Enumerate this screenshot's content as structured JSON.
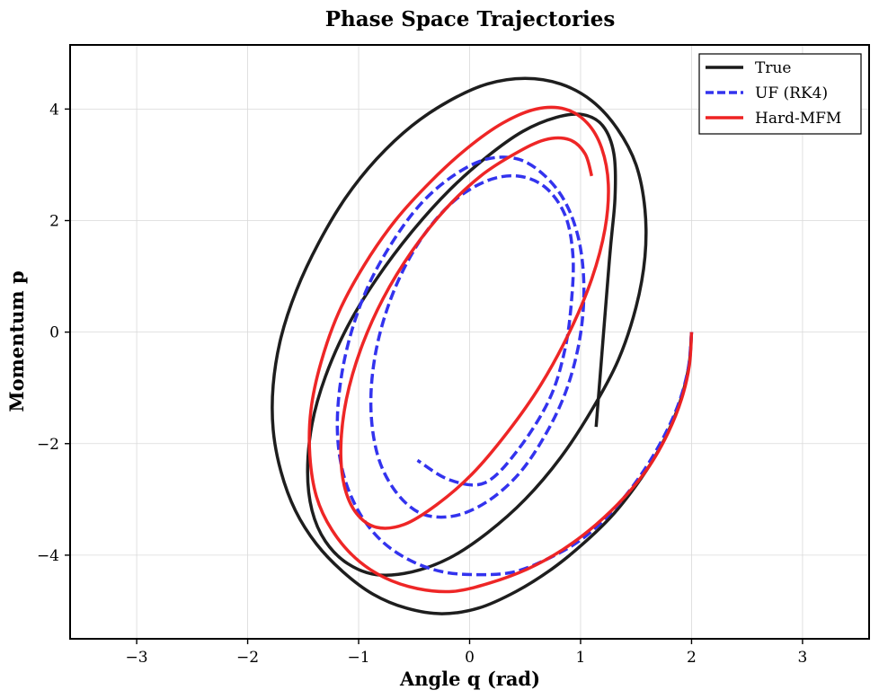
{
  "chart_data": {
    "type": "line",
    "title": "Phase Space Trajectories",
    "xlabel": "Angle q (rad)",
    "ylabel": "Momentum p",
    "xlim": [
      -3.6,
      3.6
    ],
    "ylim": [
      -5.5,
      5.15
    ],
    "xticks": [
      -3,
      -2,
      -1,
      0,
      1,
      2,
      3
    ],
    "yticks": [
      -4,
      -2,
      0,
      2,
      4
    ],
    "xtick_labels": [
      "−3",
      "−2",
      "−1",
      "0",
      "1",
      "2",
      "3"
    ],
    "ytick_labels": [
      "−4",
      "−2",
      "0",
      "2",
      "4"
    ],
    "grid": true,
    "legend_position": "top-right",
    "series": [
      {
        "name": "True",
        "color": "#1a1a1a",
        "style": "solid",
        "q": [
          2.0,
          1.98,
          1.92,
          1.82,
          1.68,
          1.5,
          1.28,
          1.02,
          0.74,
          0.42,
          0.08,
          -0.25,
          -0.57,
          -0.87,
          -1.14,
          -1.38,
          -1.57,
          -1.7,
          -1.77,
          -1.77,
          -1.7,
          -1.56,
          -1.36,
          -1.12,
          -0.84,
          -0.52,
          -0.18,
          0.16,
          0.5,
          0.82,
          1.1,
          1.33,
          1.5,
          1.58,
          1.58,
          1.5,
          1.34,
          1.1,
          0.82,
          0.5,
          0.16,
          -0.18,
          -0.52,
          -0.84,
          -1.1,
          -1.3,
          -1.42,
          -1.46,
          -1.42,
          -1.3,
          -1.1,
          -0.84,
          -0.52,
          -0.18,
          0.16,
          0.48,
          0.78,
          1.02,
          1.2,
          1.3,
          1.31,
          1.26,
          1.14
        ],
        "p": [
          0.0,
          -0.55,
          -1.1,
          -1.65,
          -2.2,
          -2.75,
          -3.3,
          -3.8,
          -4.25,
          -4.65,
          -4.95,
          -5.05,
          -4.95,
          -4.7,
          -4.3,
          -3.8,
          -3.2,
          -2.5,
          -1.75,
          -0.95,
          -0.1,
          0.75,
          1.6,
          2.4,
          3.1,
          3.7,
          4.15,
          4.45,
          4.55,
          4.45,
          4.15,
          3.65,
          3.0,
          2.2,
          1.35,
          0.45,
          -0.5,
          -1.4,
          -2.25,
          -3.0,
          -3.6,
          -4.05,
          -4.3,
          -4.35,
          -4.15,
          -3.75,
          -3.2,
          -2.5,
          -1.65,
          -0.8,
          0.1,
          0.95,
          1.8,
          2.55,
          3.15,
          3.6,
          3.85,
          3.9,
          3.7,
          3.2,
          2.4,
          1.3,
          -1.7
        ]
      },
      {
        "name": "UF (RK4)",
        "color": "#3333ee",
        "style": "dashed",
        "q": [
          2.0,
          1.97,
          1.88,
          1.73,
          1.53,
          1.29,
          1.02,
          0.72,
          0.4,
          0.08,
          -0.24,
          -0.53,
          -0.79,
          -0.99,
          -1.13,
          -1.19,
          -1.17,
          -1.08,
          -0.92,
          -0.7,
          -0.44,
          -0.15,
          0.15,
          0.44,
          0.68,
          0.87,
          0.99,
          1.03,
          0.99,
          0.87,
          0.68,
          0.44,
          0.15,
          -0.15,
          -0.44,
          -0.67,
          -0.83,
          -0.89,
          -0.84,
          -0.69,
          -0.46,
          -0.17,
          0.14,
          0.43,
          0.68,
          0.86,
          0.93,
          0.92,
          0.86,
          0.72,
          0.44,
          0.14,
          -0.18,
          -0.47
        ],
        "p": [
          0.0,
          -0.65,
          -1.3,
          -1.95,
          -2.6,
          -3.2,
          -3.7,
          -4.05,
          -4.3,
          -4.35,
          -4.3,
          -4.1,
          -3.75,
          -3.25,
          -2.6,
          -1.85,
          -1.0,
          -0.1,
          0.8,
          1.6,
          2.3,
          2.8,
          3.1,
          3.1,
          2.8,
          2.3,
          1.6,
          0.75,
          -0.15,
          -1.05,
          -1.85,
          -2.55,
          -3.05,
          -3.3,
          -3.25,
          -2.85,
          -2.2,
          -1.3,
          -0.3,
          0.7,
          1.6,
          2.3,
          2.7,
          2.8,
          2.6,
          2.1,
          1.4,
          0.6,
          -0.3,
          -1.2,
          -2.1,
          -2.7,
          -2.65,
          -2.3
        ]
      },
      {
        "name": "Hard-MFM",
        "color": "#ee2222",
        "style": "solid",
        "q": [
          2.0,
          1.98,
          1.91,
          1.79,
          1.62,
          1.4,
          1.14,
          0.84,
          0.52,
          0.18,
          -0.15,
          -0.47,
          -0.77,
          -1.03,
          -1.24,
          -1.38,
          -1.44,
          -1.43,
          -1.34,
          -1.18,
          -0.95,
          -0.67,
          -0.35,
          -0.02,
          0.3,
          0.6,
          0.86,
          1.06,
          1.19,
          1.25,
          1.22,
          1.1,
          0.9,
          0.64,
          0.34,
          0.02,
          -0.3,
          -0.59,
          -0.84,
          -1.02,
          -1.13,
          -1.16,
          -1.11,
          -0.98,
          -0.78,
          -0.52,
          -0.22,
          0.1,
          0.41,
          0.68,
          0.9,
          1.04,
          1.1
        ],
        "p": [
          0.0,
          -0.6,
          -1.2,
          -1.8,
          -2.4,
          -2.95,
          -3.45,
          -3.9,
          -4.25,
          -4.5,
          -4.65,
          -4.6,
          -4.4,
          -4.05,
          -3.55,
          -2.95,
          -2.2,
          -1.4,
          -0.55,
          0.35,
          1.2,
          2.0,
          2.7,
          3.3,
          3.75,
          4.0,
          4.0,
          3.75,
          3.3,
          2.65,
          1.85,
          0.95,
          0.0,
          -0.95,
          -1.8,
          -2.55,
          -3.1,
          -3.45,
          -3.5,
          -3.25,
          -2.75,
          -2.05,
          -1.2,
          -0.3,
          0.6,
          1.45,
          2.2,
          2.8,
          3.2,
          3.45,
          3.45,
          3.2,
          2.8
        ]
      }
    ]
  }
}
